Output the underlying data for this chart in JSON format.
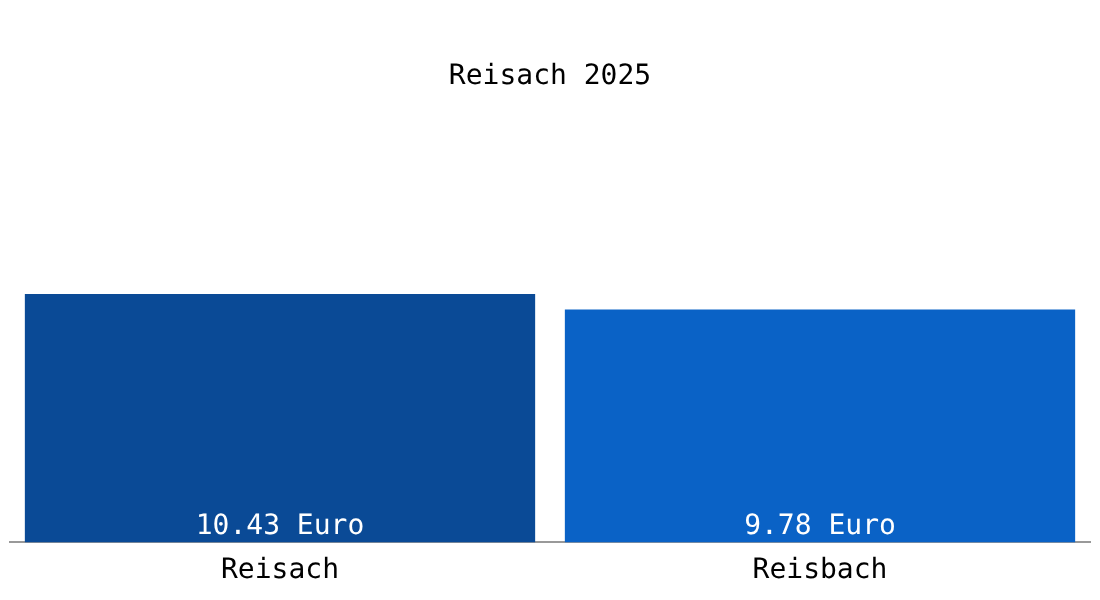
{
  "chart_data": {
    "type": "bar",
    "title": "Reisach 2025",
    "categories": [
      "Reisach",
      "Reisbach"
    ],
    "values": [
      10.43,
      9.78
    ],
    "colors": [
      "#0a4a96",
      "#0a62c6"
    ],
    "value_labels": [
      "10.43 Euro",
      "9.78 Euro"
    ],
    "tick_labels": "x",
    "grid": false,
    "legend": false
  }
}
